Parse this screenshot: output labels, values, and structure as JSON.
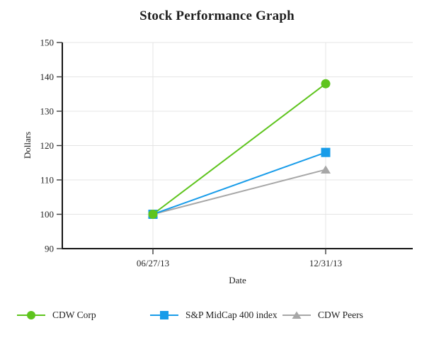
{
  "chart_data": {
    "type": "line",
    "title": "Stock Performance Graph",
    "xlabel": "Date",
    "ylabel": "Dollars",
    "categories": [
      "06/27/13",
      "12/31/13"
    ],
    "y_ticks": [
      90,
      100,
      110,
      120,
      130,
      140,
      150
    ],
    "ylim": [
      90,
      150
    ],
    "grid": true,
    "legend_position": "bottom",
    "axis_color": "#141414",
    "gridline_color": "#e4e4e4",
    "tick_color": "#3c3c3c",
    "text_color": "#262626",
    "series": [
      {
        "name": "CDW Corp",
        "marker": "circle",
        "color": "#5ec41d",
        "values": [
          100,
          138
        ]
      },
      {
        "name": "S&P MidCap 400 index",
        "marker": "square",
        "color": "#189ce9",
        "values": [
          100,
          118
        ]
      },
      {
        "name": "CDW Peers",
        "marker": "triangle",
        "color": "#a7a7a7",
        "values": [
          100,
          113
        ]
      }
    ]
  }
}
